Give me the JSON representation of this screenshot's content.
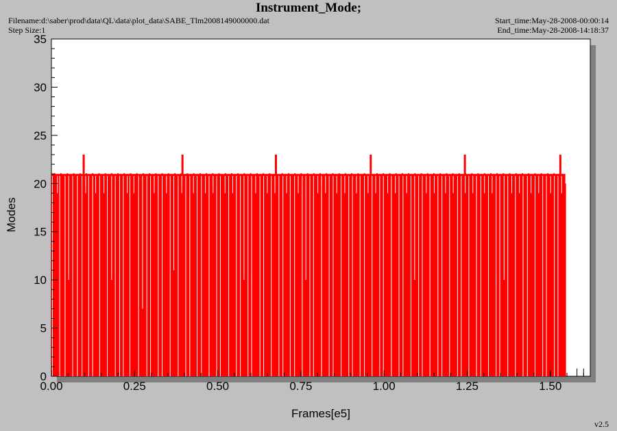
{
  "header": {
    "title": "Instrument_Mode;",
    "filename": "Filename:d:\\saber\\prod\\data\\QL\\data\\plot_data\\SABE_Tlm2008149000000.dat",
    "step_size": "Step Size:1",
    "start_time": "Start_time:May-28-2008-00:00:14",
    "end_time": "End_time:May-28-2008-14:18:37"
  },
  "footer": {
    "version": "v2.5"
  },
  "colors": {
    "series": "#ff0000",
    "plot_bg": "#ffffff",
    "page_bg": "#c0c0c0",
    "shadow": "#808080"
  },
  "chart_data": {
    "type": "line",
    "title": "Instrument_Mode;",
    "xlabel": "Frames[e5]",
    "ylabel": "Modes",
    "xlim": [
      0,
      1.62
    ],
    "ylim": [
      0,
      35
    ],
    "xticks": [
      "0.00",
      "0.25",
      "0.50",
      "0.75",
      "1.00",
      "1.25",
      "1.50"
    ],
    "yticks": [
      "0",
      "5",
      "10",
      "15",
      "20",
      "25",
      "30",
      "35"
    ],
    "grid": false,
    "series": [
      {
        "baseline_value": 21,
        "peak_value": 23,
        "peak_x": [
          0.097,
          0.394,
          0.675,
          0.96,
          1.243,
          1.53
        ],
        "drop_x": [
          0.003,
          0.018,
          0.025,
          0.041,
          0.052,
          0.064,
          0.078,
          0.092,
          0.103,
          0.112,
          0.124,
          0.133,
          0.145,
          0.158,
          0.168,
          0.181,
          0.192,
          0.205,
          0.216,
          0.228,
          0.236,
          0.248,
          0.262,
          0.274,
          0.287,
          0.298,
          0.309,
          0.321,
          0.333,
          0.346,
          0.357,
          0.368,
          0.381,
          0.392,
          0.404,
          0.416,
          0.427,
          0.438,
          0.451,
          0.463,
          0.474,
          0.486,
          0.497,
          0.508,
          0.522,
          0.533,
          0.545,
          0.556,
          0.568,
          0.579,
          0.591,
          0.602,
          0.614,
          0.627,
          0.638,
          0.649,
          0.661,
          0.672,
          0.684,
          0.696,
          0.707,
          0.718,
          0.731,
          0.742,
          0.754,
          0.765,
          0.777,
          0.788,
          0.801,
          0.812,
          0.824,
          0.835,
          0.847,
          0.858,
          0.871,
          0.882,
          0.894,
          0.905,
          0.917,
          0.928,
          0.941,
          0.952,
          0.964,
          0.975,
          0.987,
          0.998,
          1.011,
          1.022,
          1.034,
          1.045,
          1.057,
          1.068,
          1.081,
          1.092,
          1.104,
          1.115,
          1.127,
          1.138,
          1.151,
          1.162,
          1.174,
          1.185,
          1.197,
          1.208,
          1.221,
          1.232,
          1.244,
          1.255,
          1.267,
          1.278,
          1.291,
          1.302,
          1.314,
          1.325,
          1.337,
          1.348,
          1.361,
          1.372,
          1.384,
          1.395,
          1.407,
          1.418,
          1.431,
          1.442,
          1.454,
          1.465,
          1.477,
          1.488,
          1.501,
          1.512,
          1.523,
          1.534
        ],
        "drop_values": [
          0,
          19,
          0,
          0,
          10,
          0,
          0,
          0,
          19,
          0,
          0,
          19,
          0,
          19,
          0,
          10,
          0,
          0,
          0,
          19,
          0,
          19,
          0,
          7,
          0,
          0,
          19,
          0,
          0,
          19,
          0,
          11,
          0,
          19,
          0,
          0,
          19,
          0,
          0,
          19,
          0,
          19,
          0,
          0,
          19,
          0,
          19,
          0,
          0,
          10,
          0,
          0,
          19,
          0,
          0,
          19,
          0,
          19,
          0,
          0,
          19,
          0,
          0,
          19,
          0,
          10,
          0,
          0,
          19,
          0,
          19,
          0,
          0,
          19,
          0,
          19,
          0,
          0,
          19,
          0,
          0,
          19,
          0,
          19,
          0,
          0,
          19,
          0,
          19,
          0,
          0,
          19,
          0,
          10,
          0,
          0,
          19,
          0,
          19,
          0,
          0,
          19,
          0,
          19,
          0,
          0,
          19,
          0,
          19,
          0,
          0,
          19,
          0,
          19,
          0,
          0,
          10,
          0,
          19,
          0,
          19,
          0,
          0,
          19,
          0,
          19,
          0,
          0,
          19,
          0,
          0,
          19
        ],
        "end_x": 1.545,
        "tail_points": [
          [
            1.545,
            20
          ],
          [
            1.58,
            0.8
          ],
          [
            1.6,
            0.8
          ]
        ]
      }
    ]
  }
}
